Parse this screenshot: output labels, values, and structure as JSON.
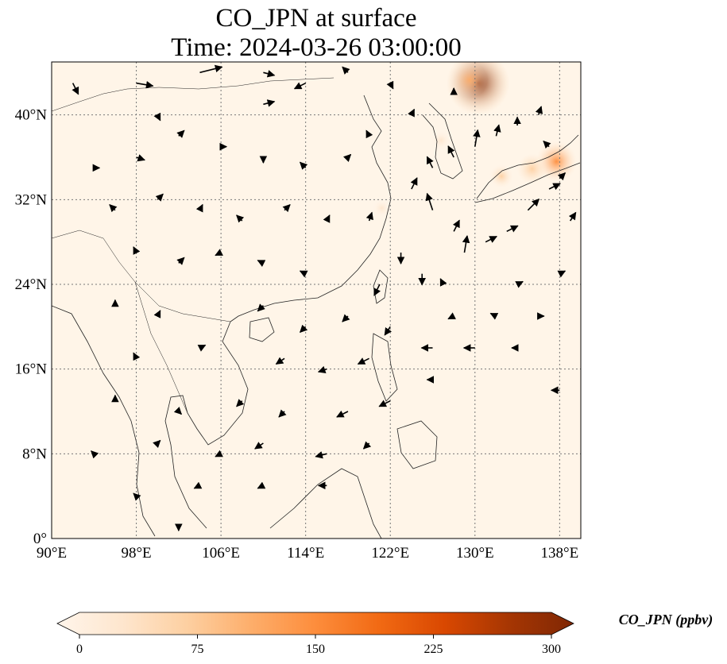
{
  "title": {
    "line1": "CO_JPN at surface",
    "line2": "Time: 2024-03-26 03:00:00"
  },
  "map": {
    "extent_lon": [
      90,
      140
    ],
    "extent_lat": [
      0,
      45
    ],
    "lon_ticks": [
      {
        "value": 90,
        "label": "90°E"
      },
      {
        "value": 98,
        "label": "98°E"
      },
      {
        "value": 106,
        "label": "106°E"
      },
      {
        "value": 114,
        "label": "114°E"
      },
      {
        "value": 122,
        "label": "122°E"
      },
      {
        "value": 130,
        "label": "130°E"
      },
      {
        "value": 138,
        "label": "138°E"
      }
    ],
    "lat_ticks": [
      {
        "value": 0,
        "label": "0°"
      },
      {
        "value": 8,
        "label": "8°N"
      },
      {
        "value": 16,
        "label": "16°N"
      },
      {
        "value": 24,
        "label": "24°N"
      },
      {
        "value": 32,
        "label": "32°N"
      },
      {
        "value": 40,
        "label": "40°N"
      }
    ],
    "gridlines": true,
    "background_color": "#fff5e8",
    "hotspots": [
      {
        "lon": 130.3,
        "lat": 43.0,
        "value": 300
      },
      {
        "lon": 129.5,
        "lat": 43.3,
        "value": 120
      },
      {
        "lon": 137.7,
        "lat": 35.6,
        "value": 160
      },
      {
        "lon": 135.4,
        "lat": 34.9,
        "value": 90
      },
      {
        "lon": 132.5,
        "lat": 34.2,
        "value": 60
      },
      {
        "lon": 126.8,
        "lat": 37.6,
        "value": 30
      },
      {
        "lon": 121.2,
        "lat": 31.2,
        "value": 20
      }
    ]
  },
  "colorbar": {
    "label": "CO_JPN (ppbv)",
    "ticks": [
      0,
      75,
      150,
      225,
      300
    ],
    "vmin": 0,
    "vmax": 300,
    "extend": "both",
    "colormap": [
      "#fff5eb",
      "#fee6ce",
      "#fdd0a2",
      "#fdae6b",
      "#fd8d3c",
      "#f16913",
      "#d94801",
      "#a63603",
      "#7f2704"
    ]
  },
  "wind": [
    {
      "lon": 92,
      "lat": 43,
      "u": 1,
      "v": -2
    },
    {
      "lon": 98,
      "lat": 43,
      "u": 3,
      "v": -0.5
    },
    {
      "lon": 104,
      "lat": 44,
      "u": 4,
      "v": 1
    },
    {
      "lon": 110,
      "lat": 44,
      "u": 2,
      "v": -0.5
    },
    {
      "lon": 114,
      "lat": 43,
      "u": -2,
      "v": -1
    },
    {
      "lon": 118,
      "lat": 44,
      "u": -1,
      "v": 1
    },
    {
      "lon": 122,
      "lat": 43,
      "u": 0.5,
      "v": -1
    },
    {
      "lon": 100,
      "lat": 40,
      "u": 0.5,
      "v": -1
    },
    {
      "lon": 110,
      "lat": 41,
      "u": 2,
      "v": 0.5
    },
    {
      "lon": 94,
      "lat": 35,
      "u": 1,
      "v": 0
    },
    {
      "lon": 98,
      "lat": 36,
      "u": 1.5,
      "v": -0.5
    },
    {
      "lon": 102,
      "lat": 38,
      "u": 1,
      "v": 1
    },
    {
      "lon": 106,
      "lat": 37,
      "u": 1,
      "v": 0
    },
    {
      "lon": 110,
      "lat": 36,
      "u": 0,
      "v": -1
    },
    {
      "lon": 114,
      "lat": 35,
      "u": -1,
      "v": 1
    },
    {
      "lon": 118,
      "lat": 36,
      "u": 0.5,
      "v": 0.5
    },
    {
      "lon": 96,
      "lat": 31,
      "u": -1,
      "v": 1
    },
    {
      "lon": 100,
      "lat": 32,
      "u": 1,
      "v": 1
    },
    {
      "lon": 104,
      "lat": 31,
      "u": 0.5,
      "v": 1
    },
    {
      "lon": 108,
      "lat": 30,
      "u": -1,
      "v": 1
    },
    {
      "lon": 112,
      "lat": 31,
      "u": 1,
      "v": 1
    },
    {
      "lon": 116,
      "lat": 30,
      "u": 0.5,
      "v": 1
    },
    {
      "lon": 98,
      "lat": 27,
      "u": -0.5,
      "v": 1
    },
    {
      "lon": 102,
      "lat": 26,
      "u": 1,
      "v": 1
    },
    {
      "lon": 106,
      "lat": 27,
      "u": -1,
      "v": -0.5
    },
    {
      "lon": 110,
      "lat": 26,
      "u": -1,
      "v": 0.5
    },
    {
      "lon": 114,
      "lat": 25,
      "u": -1,
      "v": 0.5
    },
    {
      "lon": 96,
      "lat": 22,
      "u": 0,
      "v": 1
    },
    {
      "lon": 100,
      "lat": 21,
      "u": 0.5,
      "v": 1
    },
    {
      "lon": 110,
      "lat": 22,
      "u": -1,
      "v": -1
    },
    {
      "lon": 114,
      "lat": 20,
      "u": -1,
      "v": -1
    },
    {
      "lon": 118,
      "lat": 21,
      "u": -1,
      "v": -1
    },
    {
      "lon": 122,
      "lat": 20,
      "u": -1,
      "v": -1.5
    },
    {
      "lon": 98,
      "lat": 17,
      "u": -0.5,
      "v": 1
    },
    {
      "lon": 104,
      "lat": 18,
      "u": 1,
      "v": 0.5
    },
    {
      "lon": 112,
      "lat": 17,
      "u": -1.5,
      "v": -1
    },
    {
      "lon": 116,
      "lat": 16,
      "u": -1.5,
      "v": -0.5
    },
    {
      "lon": 120,
      "lat": 17,
      "u": -2,
      "v": -1
    },
    {
      "lon": 126,
      "lat": 18,
      "u": -2,
      "v": 0
    },
    {
      "lon": 130,
      "lat": 18,
      "u": -2,
      "v": 0
    },
    {
      "lon": 134,
      "lat": 18,
      "u": -1,
      "v": 0
    },
    {
      "lon": 96,
      "lat": 13,
      "u": 0,
      "v": 1
    },
    {
      "lon": 102,
      "lat": 12,
      "u": 0.5,
      "v": -0.5
    },
    {
      "lon": 108,
      "lat": 13,
      "u": -1,
      "v": -1
    },
    {
      "lon": 112,
      "lat": 12,
      "u": -1,
      "v": -1
    },
    {
      "lon": 118,
      "lat": 12,
      "u": -2,
      "v": -1
    },
    {
      "lon": 122,
      "lat": 13,
      "u": -2,
      "v": -1
    },
    {
      "lon": 126,
      "lat": 15,
      "u": -1,
      "v": 0
    },
    {
      "lon": 138,
      "lat": 14,
      "u": -1.5,
      "v": 0
    },
    {
      "lon": 94,
      "lat": 8,
      "u": -0.5,
      "v": 0.5
    },
    {
      "lon": 100,
      "lat": 9,
      "u": 0.5,
      "v": 0.5
    },
    {
      "lon": 106,
      "lat": 8,
      "u": -1,
      "v": -0.5
    },
    {
      "lon": 110,
      "lat": 9,
      "u": -1.5,
      "v": -1
    },
    {
      "lon": 116,
      "lat": 8,
      "u": -2,
      "v": -0.5
    },
    {
      "lon": 120,
      "lat": 9,
      "u": -1,
      "v": -1
    },
    {
      "lon": 98,
      "lat": 4,
      "u": -0.5,
      "v": 0.5
    },
    {
      "lon": 104,
      "lat": 5,
      "u": -1,
      "v": -0.5
    },
    {
      "lon": 110,
      "lat": 5,
      "u": -1,
      "v": -0.5
    },
    {
      "lon": 116,
      "lat": 5,
      "u": -1.5,
      "v": 0
    },
    {
      "lon": 102,
      "lat": 1,
      "u": 0,
      "v": -0.5
    },
    {
      "lon": 126,
      "lat": 31,
      "u": -1,
      "v": 3
    },
    {
      "lon": 128,
      "lat": 29,
      "u": 1,
      "v": 2
    },
    {
      "lon": 129,
      "lat": 27,
      "u": 0.5,
      "v": 3
    },
    {
      "lon": 131,
      "lat": 28,
      "u": 2,
      "v": 1
    },
    {
      "lon": 133,
      "lat": 29,
      "u": 2,
      "v": 1
    },
    {
      "lon": 135,
      "lat": 31,
      "u": 2,
      "v": 2
    },
    {
      "lon": 137,
      "lat": 33,
      "u": 2,
      "v": 1
    },
    {
      "lon": 139,
      "lat": 30,
      "u": 1,
      "v": 1.5
    },
    {
      "lon": 124,
      "lat": 33,
      "u": 1,
      "v": 2
    },
    {
      "lon": 126,
      "lat": 35,
      "u": -1,
      "v": 2
    },
    {
      "lon": 128,
      "lat": 36,
      "u": -1,
      "v": 2
    },
    {
      "lon": 130,
      "lat": 37,
      "u": 0.5,
      "v": 3
    },
    {
      "lon": 132,
      "lat": 38,
      "u": 0.5,
      "v": 2
    },
    {
      "lon": 134,
      "lat": 39,
      "u": 0,
      "v": 1.5
    },
    {
      "lon": 136,
      "lat": 40,
      "u": 0.5,
      "v": 1.5
    },
    {
      "lon": 137,
      "lat": 37,
      "u": -1,
      "v": 1
    },
    {
      "lon": 138,
      "lat": 34,
      "u": 1,
      "v": 1
    },
    {
      "lon": 123,
      "lat": 27,
      "u": 0,
      "v": -2
    },
    {
      "lon": 121,
      "lat": 24,
      "u": -1,
      "v": -2
    },
    {
      "lon": 125,
      "lat": 25,
      "u": 0,
      "v": -2
    },
    {
      "lon": 127,
      "lat": 24,
      "u": -0.5,
      "v": 1
    },
    {
      "lon": 134,
      "lat": 24,
      "u": 1,
      "v": 0.5
    },
    {
      "lon": 138,
      "lat": 25,
      "u": 1,
      "v": 0.5
    },
    {
      "lon": 128,
      "lat": 21,
      "u": -1,
      "v": -0.5
    },
    {
      "lon": 132,
      "lat": 21,
      "u": -1,
      "v": 0.5
    },
    {
      "lon": 136,
      "lat": 21,
      "u": 1,
      "v": 0
    },
    {
      "lon": 120,
      "lat": 30,
      "u": 0.5,
      "v": 1.5
    },
    {
      "lon": 124,
      "lat": 40,
      "u": 0.5,
      "v": 1
    },
    {
      "lon": 128,
      "lat": 42,
      "u": 0,
      "v": 1
    },
    {
      "lon": 120,
      "lat": 38,
      "u": -0.5,
      "v": 1
    }
  ]
}
